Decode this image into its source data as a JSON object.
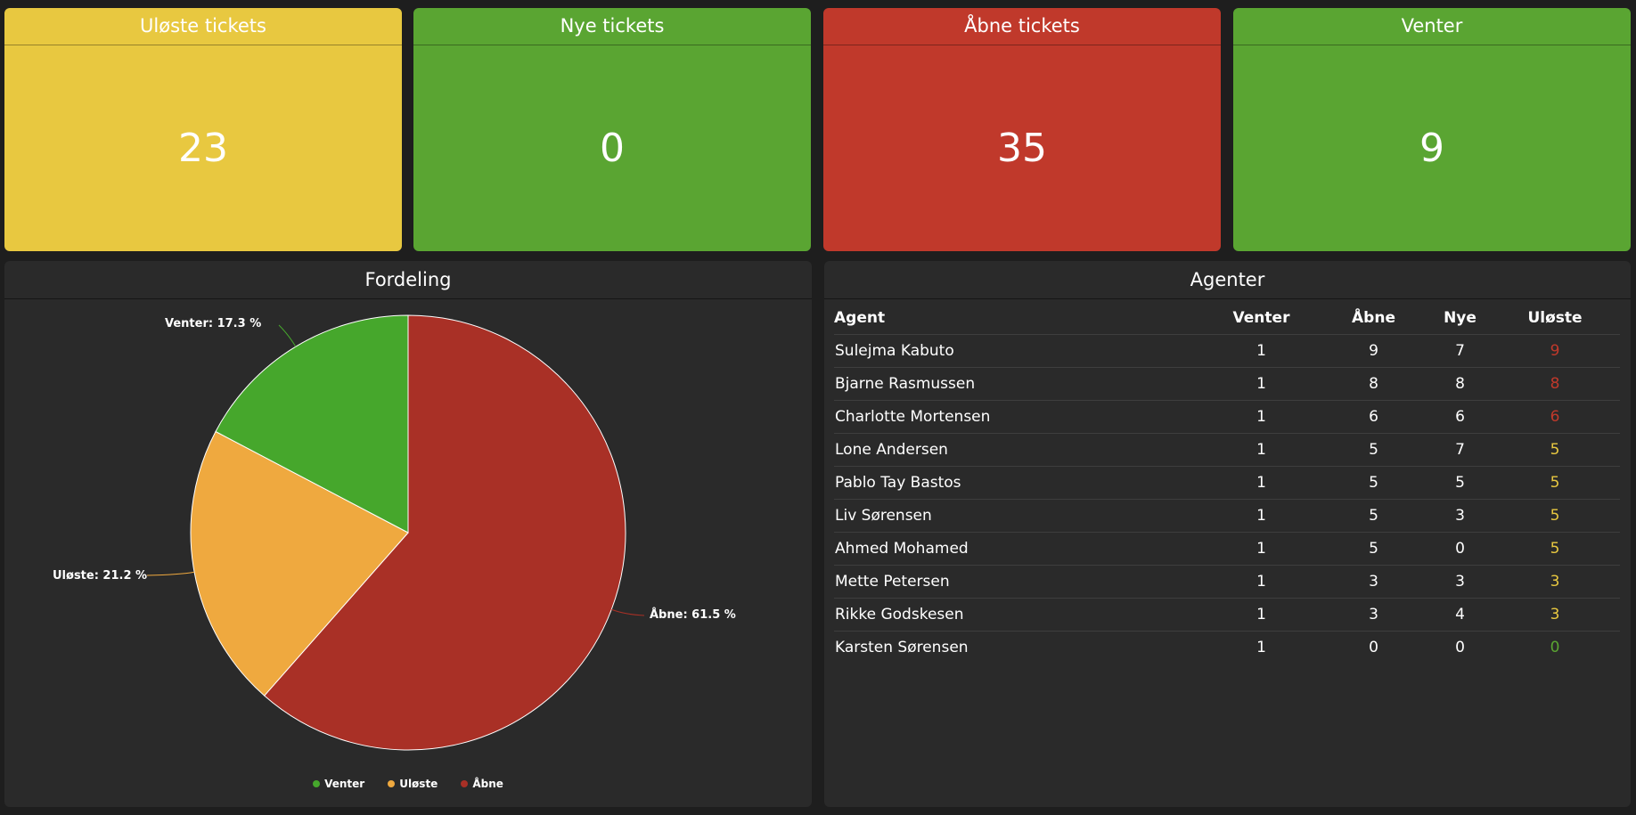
{
  "tiles": [
    {
      "title": "Uløste tickets",
      "value": "23",
      "color": "#e8c840"
    },
    {
      "title": "Nye tickets",
      "value": "0",
      "color": "#5aa532"
    },
    {
      "title": "Åbne tickets",
      "value": "35",
      "color": "#c0392b"
    },
    {
      "title": "Venter",
      "value": "9",
      "color": "#5aa532"
    }
  ],
  "distribution": {
    "title": "Fordeling",
    "slice_labels": [
      "Venter: 17.3 %",
      "Uløste: 21.2 %",
      "Åbne: 61.5 %"
    ],
    "legend": [
      "Venter",
      "Uløste",
      "Åbne"
    ]
  },
  "chart_data": {
    "type": "pie",
    "title": "Fordeling",
    "categories": [
      "Åbne",
      "Uløste",
      "Venter"
    ],
    "values": [
      61.5,
      21.2,
      17.3
    ],
    "colors": [
      "#a93026",
      "#efa93f",
      "#46a72c"
    ],
    "legend_position": "bottom"
  },
  "agents": {
    "title": "Agenter",
    "columns": [
      "Agent",
      "Venter",
      "Åbne",
      "Nye",
      "Uløste"
    ],
    "rows": [
      {
        "name": "Sulejma Kabuto",
        "venter": "1",
        "aabne": "9",
        "nye": "7",
        "uloeste": "9",
        "status_color": "#c0392b"
      },
      {
        "name": "Bjarne Rasmussen",
        "venter": "1",
        "aabne": "8",
        "nye": "8",
        "uloeste": "8",
        "status_color": "#c0392b"
      },
      {
        "name": "Charlotte Mortensen",
        "venter": "1",
        "aabne": "6",
        "nye": "6",
        "uloeste": "6",
        "status_color": "#c0392b"
      },
      {
        "name": "Lone Andersen",
        "venter": "1",
        "aabne": "5",
        "nye": "7",
        "uloeste": "5",
        "status_color": "#e8c840"
      },
      {
        "name": "Pablo Tay Bastos",
        "venter": "1",
        "aabne": "5",
        "nye": "5",
        "uloeste": "5",
        "status_color": "#e8c840"
      },
      {
        "name": "Liv Sørensen",
        "venter": "1",
        "aabne": "5",
        "nye": "3",
        "uloeste": "5",
        "status_color": "#e8c840"
      },
      {
        "name": "Ahmed Mohamed",
        "venter": "1",
        "aabne": "5",
        "nye": "0",
        "uloeste": "5",
        "status_color": "#e8c840"
      },
      {
        "name": "Mette Petersen",
        "venter": "1",
        "aabne": "3",
        "nye": "3",
        "uloeste": "3",
        "status_color": "#e8c840"
      },
      {
        "name": "Rikke Godskesen",
        "venter": "1",
        "aabne": "3",
        "nye": "4",
        "uloeste": "3",
        "status_color": "#e8c840"
      },
      {
        "name": "Karsten Sørensen",
        "venter": "1",
        "aabne": "0",
        "nye": "0",
        "uloeste": "0",
        "status_color": "#5aa532"
      }
    ]
  }
}
